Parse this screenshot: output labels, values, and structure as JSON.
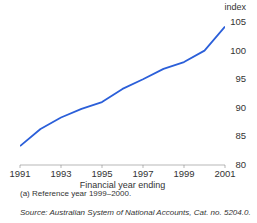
{
  "chart_data": {
    "type": "line",
    "x": [
      1991,
      1992,
      1993,
      1994,
      1995,
      1996,
      1997,
      1998,
      1999,
      2000,
      2001
    ],
    "values": [
      83.3,
      86.3,
      88.3,
      89.8,
      91.0,
      93.3,
      95.0,
      96.8,
      98.0,
      100.0,
      104.2
    ],
    "color": "#2b5fd9",
    "xlim": [
      1991,
      2001
    ],
    "xticks": [
      1991,
      1993,
      1995,
      1997,
      1999,
      2001
    ],
    "ylim": [
      80,
      105
    ],
    "yticks": [
      80,
      85,
      90,
      95,
      100,
      105
    ],
    "grid": false,
    "xlabel": "Financial year ending",
    "ylabel": "index",
    "annotations": [
      "(a) Reference year 1999–2000.",
      "Source: Australian System of National Accounts, Cat. no. 5204.0."
    ]
  }
}
